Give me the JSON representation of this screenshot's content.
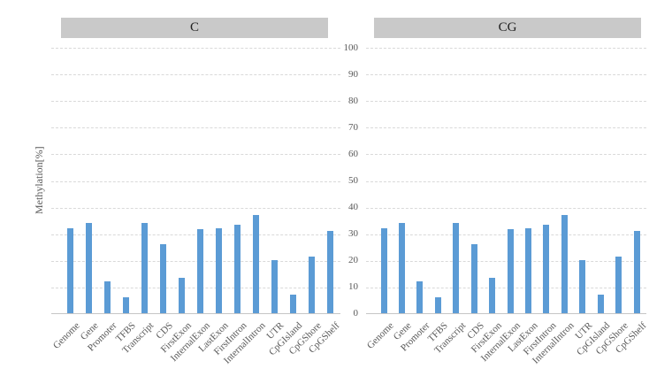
{
  "y_axis": {
    "title": "Methylation[%]",
    "ticks": [
      "0",
      "10",
      "20",
      "30",
      "40",
      "50",
      "60",
      "70",
      "80",
      "90",
      "100"
    ]
  },
  "panels": [
    {
      "title": "C"
    },
    {
      "title": "CG"
    }
  ],
  "chart_data": {
    "type": "bar",
    "title": "",
    "ylabel": "Methylation[%]",
    "ylim": [
      0,
      100
    ],
    "ytick_step": 10,
    "grid": "horizontal-dashed",
    "legend": "none",
    "bar_color": "#5B9BD5",
    "categories": [
      "Genome",
      "Gene",
      "Promoter",
      "TFBS",
      "Transcript",
      "CDS",
      "FirstExon",
      "InternalExon",
      "LastExon",
      "FirstIntron",
      "InternalIntron",
      "UTR",
      "CpGIsland",
      "CpGShore",
      "CpGShelf"
    ],
    "series": [
      {
        "name": "C",
        "values": [
          32,
          34,
          12,
          6,
          34,
          26,
          13.3,
          31.5,
          32,
          33.3,
          37,
          20,
          7,
          21.3,
          31
        ]
      },
      {
        "name": "CG",
        "values": [
          32,
          34,
          12,
          6,
          34,
          26,
          13.3,
          31.5,
          32,
          33.3,
          37,
          20,
          7,
          21.3,
          31
        ]
      }
    ]
  },
  "colors": {
    "bar": "#5B9BD5",
    "panel_header_bg": "#C9C9C9",
    "gridline": "#D9D9D9",
    "axis_line": "#C6C6C6",
    "label_text": "#595959",
    "header_text": "#1F1F1F",
    "background": "#FFFFFF"
  }
}
